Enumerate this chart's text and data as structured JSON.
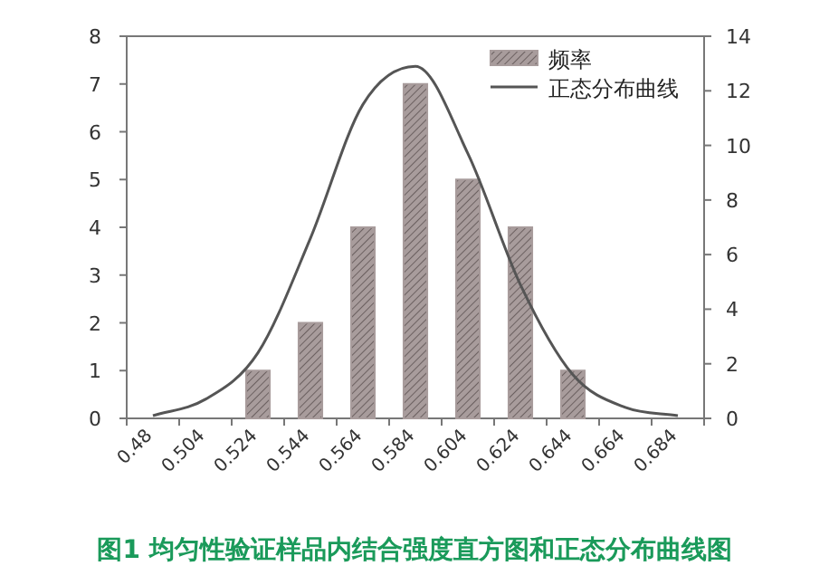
{
  "chart_data": {
    "type": "bar",
    "title": "图1 均匀性验证样品内结合强度直方图和正态分布曲线图",
    "categories": [
      "0.48",
      "0.504",
      "0.524",
      "0.544",
      "0.564",
      "0.584",
      "0.604",
      "0.624",
      "0.644",
      "0.664",
      "0.684"
    ],
    "series": [
      {
        "name": "频率",
        "color": "#a89c9c",
        "values": [
          0,
          0,
          1,
          2,
          4,
          7,
          5,
          4,
          1,
          0,
          0
        ]
      },
      {
        "name": "正态分布曲线",
        "type": "line",
        "axis": "y2",
        "color": "#555555",
        "values": [
          0.1,
          0.7,
          2.4,
          6.6,
          11.5,
          12.9,
          9.7,
          4.9,
          1.6,
          0.4,
          0.1
        ]
      }
    ],
    "ylim": [
      0,
      8
    ],
    "yticks": [
      0,
      1,
      2,
      3,
      4,
      5,
      6,
      7,
      8
    ],
    "y2lim": [
      0,
      14
    ],
    "y2ticks": [
      0,
      2,
      4,
      6,
      8,
      10,
      12,
      14
    ],
    "legend": "top right",
    "grid": false
  }
}
